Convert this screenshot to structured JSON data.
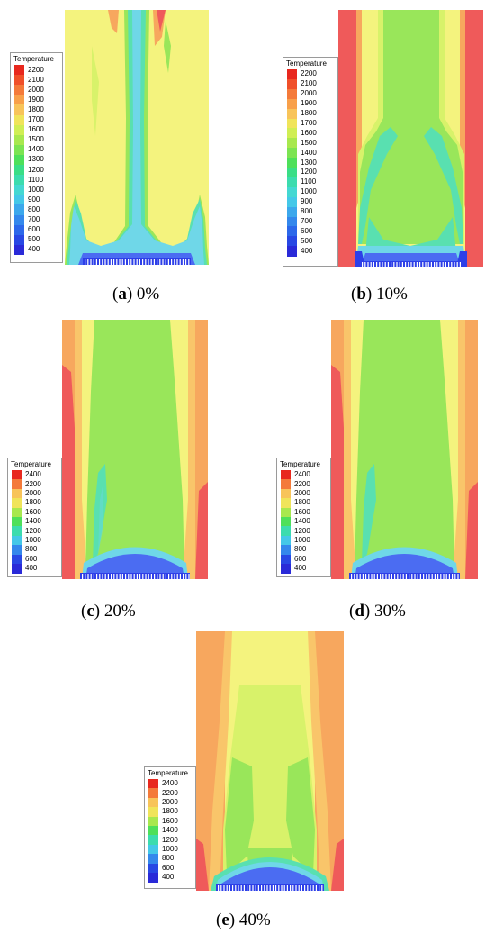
{
  "panels": [
    {
      "id": "a",
      "letter": "a",
      "value": "0%",
      "legend": {
        "title": "Temperature",
        "ticks": [
          "2200",
          "2100",
          "2000",
          "1900",
          "1800",
          "1700",
          "1600",
          "1500",
          "1400",
          "1300",
          "1200",
          "1100",
          "1000",
          "900",
          "800",
          "700",
          "600",
          "500",
          "400"
        ]
      }
    },
    {
      "id": "b",
      "letter": "b",
      "value": "10%",
      "legend": {
        "title": "Temperature",
        "ticks": [
          "2200",
          "2100",
          "2000",
          "1900",
          "1800",
          "1700",
          "1600",
          "1500",
          "1400",
          "1300",
          "1200",
          "1100",
          "1000",
          "900",
          "800",
          "700",
          "600",
          "500",
          "400"
        ]
      }
    },
    {
      "id": "c",
      "letter": "c",
      "value": "20%",
      "legend": {
        "title": "Temperature",
        "ticks": [
          "2400",
          "2200",
          "2000",
          "1800",
          "1600",
          "1400",
          "1200",
          "1000",
          "800",
          "600",
          "400"
        ]
      }
    },
    {
      "id": "d",
      "letter": "d",
      "value": "30%",
      "legend": {
        "title": "Temperature",
        "ticks": [
          "2400",
          "2200",
          "2000",
          "1800",
          "1600",
          "1400",
          "1200",
          "1000",
          "800",
          "600",
          "400"
        ]
      }
    },
    {
      "id": "e",
      "letter": "e",
      "value": "40%",
      "legend": {
        "title": "Temperature",
        "ticks": [
          "2400",
          "2200",
          "2000",
          "1800",
          "1600",
          "1400",
          "1200",
          "1000",
          "800",
          "600",
          "400"
        ]
      }
    }
  ],
  "colors": {
    "red": "#ef5a5a",
    "orange": "#f7a75e",
    "light_orange": "#f9c56a",
    "yellow": "#f4f37e",
    "yellow_green": "#d8f26a",
    "green": "#99e65a",
    "teal": "#59e0b0",
    "cyan": "#6fd7e8",
    "blue": "#4b6cf2",
    "dark_blue": "#2d3fe8"
  }
}
